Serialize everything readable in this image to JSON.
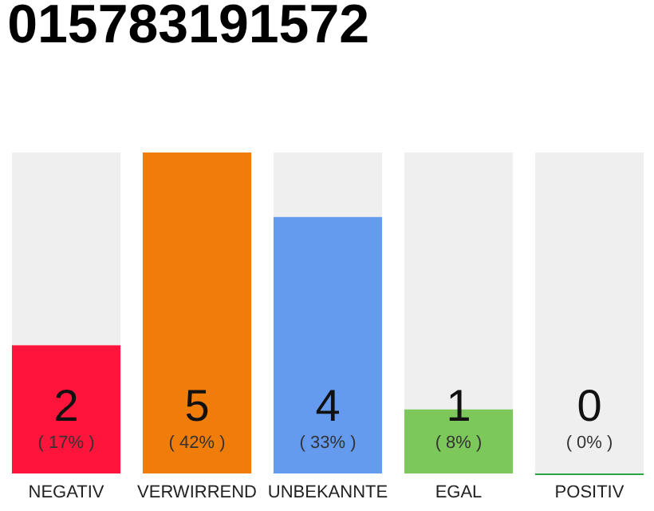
{
  "chart_data": {
    "type": "bar",
    "title": "015783191572",
    "categories": [
      "NEGATIV",
      "VERWIRREND",
      "UNBEKANNTE",
      "EGAL",
      "POSITIV"
    ],
    "series": [
      {
        "colors": [
          "#ff143c",
          "#f07d0a",
          "#649bef",
          "#7dc85a",
          "#28a745"
        ],
        "values": [
          2,
          5,
          4,
          1,
          0
        ],
        "value_labels": [
          "2",
          "5",
          "4",
          "1",
          "0"
        ]
      },
      {
        "color": "#efefef",
        "values": [
          3,
          0,
          1,
          4,
          5
        ]
      }
    ],
    "stacked": true,
    "annotations": [
      "( 17% )",
      "( 42% )",
      "( 33% )",
      "( 8% )",
      "( 0% )"
    ],
    "grid": false,
    "tick_labels": false
  }
}
